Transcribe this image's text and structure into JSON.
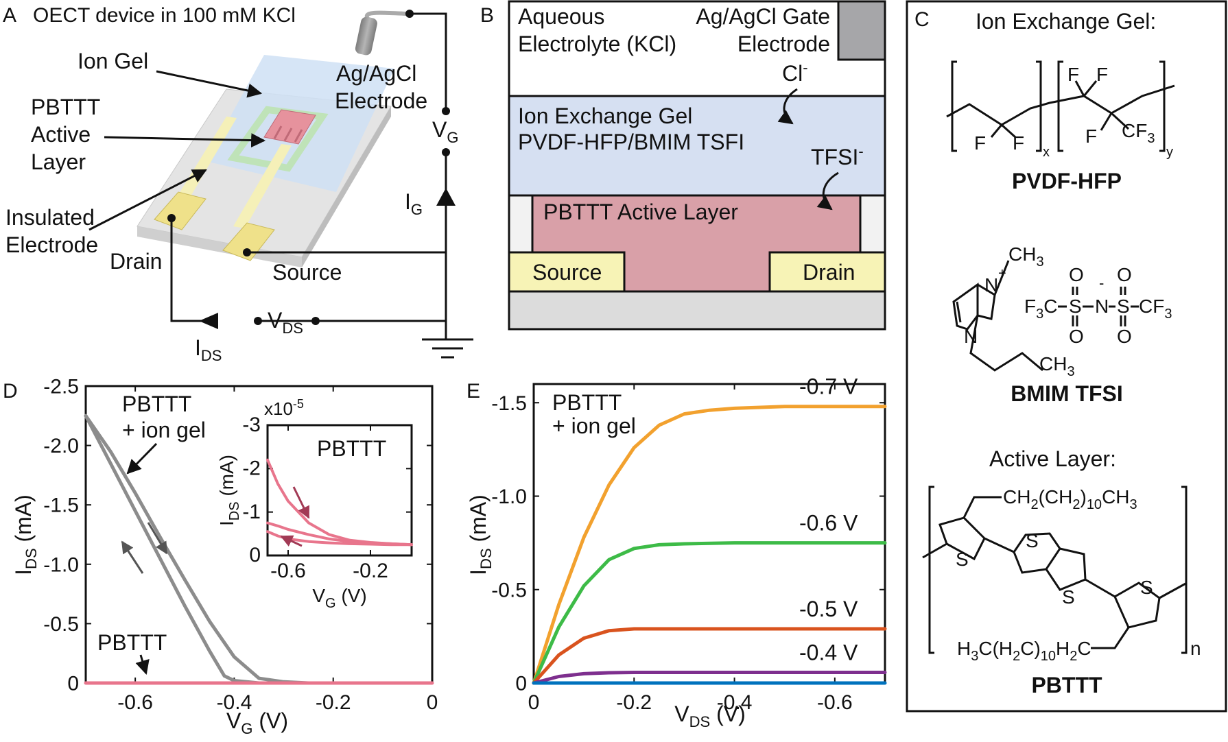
{
  "panel_letters": {
    "a": "A",
    "b": "B",
    "c": "C",
    "d": "D",
    "e": "E"
  },
  "panel_a": {
    "title": "OECT device in 100 mM KCl",
    "ion_gel": "Ion Gel",
    "ag_agcl_1": "Ag/AgCl",
    "ag_agcl_2": "Electrode",
    "pbttt_1": "PBTTT",
    "pbttt_2": "Active",
    "pbttt_3": "Layer",
    "insulated_1": "Insulated",
    "insulated_2": "Electrode",
    "drain": "Drain",
    "source": "Source",
    "vg": "V",
    "vg_sub": "G",
    "ig": "I",
    "ig_sub": "G",
    "vds": "V",
    "vds_sub": "DS",
    "ids": "I",
    "ids_sub": "DS"
  },
  "panel_b": {
    "aqueous_1": "Aqueous",
    "aqueous_2": "Electrolyte (KCl)",
    "gate_1": "Ag/AgCl Gate",
    "gate_2": "Electrode",
    "cl": "Cl",
    "cl_sup": "-",
    "gel_1": "Ion Exchange Gel",
    "gel_2": "PVDF-HFP/BMIM TSFI",
    "tfsi": "TFSI",
    "tfsi_sup": "-",
    "active": "PBTTT Active Layer",
    "source": "Source",
    "drain": "Drain",
    "colors": {
      "electrolyte": "#ffffff",
      "gel": "#d6e0f2",
      "active": "#d9a0a8",
      "contact": "#f7f3b6",
      "substrate": "#dcdcdc",
      "gate": "#a6a6a9"
    }
  },
  "panel_c": {
    "title": "Ion Exchange Gel:",
    "pvdf_label": "PVDF-HFP",
    "bmim_label": "BMIM TFSI",
    "active_title": "Active Layer:",
    "pbttt_label": "PBTTT",
    "atoms": {
      "F": "F",
      "x": "x",
      "y": "y",
      "CF": "CF",
      "three": "3",
      "CH3": "CH",
      "N": "N",
      "plus": "+",
      "minus": "-",
      "S": "S",
      "O": "O",
      "C": "C",
      "chain_top": "CH",
      "two": "2",
      "ten": "10",
      "H3C": "H",
      "chain_bottom": "C(H",
      "n": "n"
    }
  },
  "panel_d": {
    "ylabel": "I",
    "ylabel_sub": "DS",
    "ylabel_unit": " (mA)",
    "xlabel": "V",
    "xlabel_sub": "G",
    "xlabel_unit": " (V)",
    "annot_gel_1": "PBTTT",
    "annot_gel_2": "+ ion gel",
    "annot_pbttt": "PBTTT",
    "inset": {
      "title": "PBTTT",
      "multiplier": "x10",
      "multiplier_exp": "-5",
      "ylabel": "I",
      "ylabel_sub": "DS",
      "ylabel_unit": " (mA)",
      "xlabel": "V",
      "xlabel_sub": "G",
      "xlabel_unit": " (V)"
    }
  },
  "panel_e": {
    "ylabel": "I",
    "ylabel_sub": "DS",
    "ylabel_unit": " (mA)",
    "xlabel": "V",
    "xlabel_sub": "DS",
    "xlabel_unit": " (V)",
    "annot_1": "PBTTT",
    "annot_2": "+ ion gel"
  },
  "chart_data": [
    {
      "type": "line",
      "panel": "D",
      "xlabel": "VG (V)",
      "ylabel": "IDS (mA)",
      "xlim": [
        -0.7,
        0
      ],
      "ylim": [
        -2.5,
        0
      ],
      "x_reversed": false,
      "y_reversed": true,
      "xticks": [
        -0.6,
        -0.4,
        -0.2,
        0
      ],
      "xtick_labels": [
        "-0.6",
        "-0.4",
        "-0.2",
        "0"
      ],
      "yticks": [
        -2.5,
        -2.0,
        -1.5,
        -1.0,
        -0.5,
        0
      ],
      "ytick_labels": [
        "-2.5",
        "-2.0",
        "-1.5",
        "-1.0",
        "-0.5",
        "0"
      ],
      "series": [
        {
          "color": "#8c8c8c",
          "x": [
            -0.7,
            -0.65,
            -0.6,
            -0.55,
            -0.5,
            -0.45,
            -0.42,
            -0.4,
            -0.35,
            -0.3,
            -0.25
          ],
          "y": [
            -2.25,
            -1.85,
            -1.45,
            -1.05,
            -0.65,
            -0.27,
            -0.06,
            -0.02,
            0,
            0,
            0
          ]
        },
        {
          "color": "#8c8c8c",
          "x": [
            -0.7,
            -0.65,
            -0.6,
            -0.55,
            -0.5,
            -0.45,
            -0.4,
            -0.35,
            -0.3,
            -0.25
          ],
          "y": [
            -2.25,
            -1.95,
            -1.6,
            -1.23,
            -0.87,
            -0.52,
            -0.22,
            -0.04,
            -0.01,
            0
          ]
        },
        {
          "color": "#e8758c",
          "x": [
            -0.7,
            0
          ],
          "y": [
            0,
            0
          ]
        }
      ]
    },
    {
      "type": "line",
      "panel": "D-inset",
      "xlabel": "VG (V)",
      "ylabel": "IDS (mA)",
      "multiplier": "x10^-5",
      "xlim": [
        -0.7,
        0
      ],
      "ylim": [
        -3,
        0
      ],
      "y_reversed": true,
      "xticks": [
        -0.6,
        -0.2
      ],
      "xtick_labels": [
        "-0.6",
        "-0.2"
      ],
      "yticks": [
        -3,
        -2,
        -1,
        0
      ],
      "ytick_labels": [
        "-3",
        "-2",
        "-1",
        "0"
      ],
      "series": [
        {
          "color": "#e8758c",
          "x": [
            -0.7,
            -0.65,
            -0.6,
            -0.5,
            -0.4,
            -0.3,
            -0.2,
            -0.1,
            0
          ],
          "y": [
            -2.2,
            -1.65,
            -1.25,
            -0.75,
            -0.48,
            -0.35,
            -0.3,
            -0.27,
            -0.25
          ]
        },
        {
          "color": "#e8758c",
          "x": [
            -0.7,
            -0.65,
            -0.6,
            -0.5,
            -0.4,
            -0.3,
            -0.2,
            -0.1,
            0
          ],
          "y": [
            -0.75,
            -0.68,
            -0.6,
            -0.48,
            -0.38,
            -0.32,
            -0.29,
            -0.27,
            -0.25
          ]
        },
        {
          "color": "#e8758c",
          "x": [
            -0.7,
            -0.65,
            -0.6,
            -0.5,
            -0.4,
            -0.3,
            -0.2,
            -0.1,
            0
          ],
          "y": [
            -0.55,
            -0.45,
            -0.38,
            -0.32,
            -0.29,
            -0.27,
            -0.26,
            -0.25,
            -0.25
          ]
        }
      ]
    },
    {
      "type": "line",
      "panel": "E",
      "xlabel": "VDS (V)",
      "ylabel": "IDS (mA)",
      "xlim": [
        0,
        -0.7
      ],
      "ylim": [
        0,
        -1.6
      ],
      "xticks": [
        0,
        -0.2,
        -0.4,
        -0.6
      ],
      "xtick_labels": [
        "0",
        "-0.2",
        "-0.4",
        "-0.6"
      ],
      "yticks": [
        0,
        -0.5,
        -1.0,
        -1.5
      ],
      "ytick_labels": [
        "0",
        "-0.5",
        "-1.0",
        "-1.5"
      ],
      "series": [
        {
          "name": "-0.7 V",
          "color": "#f2a12e",
          "x": [
            0,
            -0.05,
            -0.1,
            -0.15,
            -0.2,
            -0.25,
            -0.3,
            -0.35,
            -0.4,
            -0.5,
            -0.6,
            -0.7
          ],
          "y": [
            0,
            -0.42,
            -0.78,
            -1.06,
            -1.26,
            -1.38,
            -1.44,
            -1.46,
            -1.47,
            -1.48,
            -1.48,
            -1.48
          ]
        },
        {
          "name": "-0.6 V",
          "color": "#3dbb47",
          "x": [
            0,
            -0.05,
            -0.1,
            -0.15,
            -0.2,
            -0.25,
            -0.3,
            -0.4,
            -0.5,
            -0.6,
            -0.7
          ],
          "y": [
            0,
            -0.3,
            -0.52,
            -0.66,
            -0.72,
            -0.74,
            -0.745,
            -0.75,
            -0.75,
            -0.75,
            -0.75
          ]
        },
        {
          "name": "-0.5 V",
          "color": "#d9531e",
          "x": [
            0,
            -0.05,
            -0.1,
            -0.15,
            -0.2,
            -0.3,
            -0.4,
            -0.5,
            -0.6,
            -0.7
          ],
          "y": [
            0,
            -0.15,
            -0.24,
            -0.28,
            -0.29,
            -0.29,
            -0.29,
            -0.29,
            -0.29,
            -0.29
          ]
        },
        {
          "name": "-0.4 V",
          "color": "#7e2f8e",
          "x": [
            0,
            -0.05,
            -0.1,
            -0.15,
            -0.2,
            -0.4,
            -0.7
          ],
          "y": [
            0,
            -0.035,
            -0.05,
            -0.055,
            -0.057,
            -0.057,
            -0.057
          ]
        },
        {
          "color": "#0072bd",
          "x": [
            0,
            -0.7
          ],
          "y": [
            0,
            0
          ]
        }
      ]
    }
  ]
}
